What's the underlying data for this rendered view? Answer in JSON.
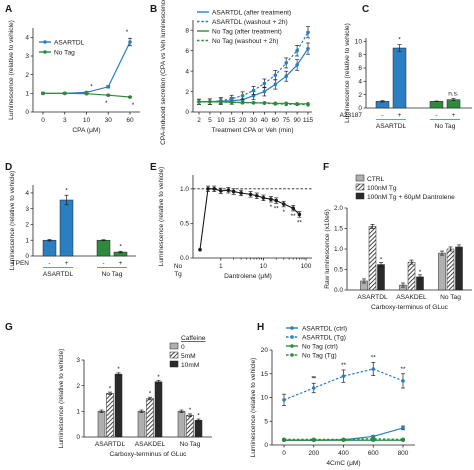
{
  "colors": {
    "blue": "#2a7fc1",
    "green": "#2e8b3e",
    "red": "#c0282c",
    "black": "#1a1a1a",
    "gray": "#a8a8a8",
    "dark": "#2a2a2a"
  },
  "chart_data": [
    {
      "panel": "A",
      "type": "line",
      "xlabel": "CPA (μM)",
      "ylabel": "Luminescence (relative to vehicle)",
      "x_ticks": [
        "0",
        "3",
        "10",
        "30",
        "60"
      ],
      "y_ticks": [
        "0",
        "1",
        "2",
        "3",
        "4"
      ],
      "ylim": [
        0,
        4.5
      ],
      "legend_position": "top-left",
      "series": [
        {
          "name": "ASARTDL",
          "color": "#2a7fc1",
          "values": [
            1.0,
            1.0,
            1.05,
            1.35,
            3.75
          ],
          "err": [
            0.03,
            0.03,
            0.04,
            0.06,
            0.2
          ]
        },
        {
          "name": "No Tag",
          "color": "#2e8b3e",
          "values": [
            1.0,
            1.0,
            0.98,
            0.9,
            0.8
          ],
          "err": [
            0.03,
            0.03,
            0.03,
            0.03,
            0.03
          ]
        }
      ],
      "annotations": [
        "*",
        "*",
        "*",
        "*"
      ]
    },
    {
      "panel": "B",
      "type": "line",
      "xlabel": "Treatment CPA or Veh (min)",
      "ylabel": "CPA-induced secretion (CPA vs Veh luminescence)",
      "x_ticks": [
        "2",
        "5",
        "10",
        "15",
        "20",
        "30",
        "40",
        "60",
        "75",
        "90",
        "115"
      ],
      "y_ticks": [
        "0",
        "2",
        "4",
        "6",
        "8"
      ],
      "ylim": [
        0,
        9
      ],
      "legend_position": "top-left",
      "series": [
        {
          "name": "ASARTDL (after treatment)",
          "color": "#2a7fc1",
          "dash": "solid",
          "values": [
            1.0,
            1.0,
            1.05,
            1.1,
            1.2,
            1.6,
            2.0,
            2.7,
            3.5,
            4.6,
            6.2
          ]
        },
        {
          "name": "ASARTDL (washout + 2h)",
          "color": "#2a7fc1",
          "dash": "dashed",
          "values": [
            1.0,
            1.0,
            1.1,
            1.3,
            1.6,
            2.1,
            2.8,
            3.6,
            4.8,
            6.0,
            7.8
          ]
        },
        {
          "name": "No Tag (after treatment)",
          "color": "#2e8b3e",
          "dash": "solid",
          "values": [
            1.0,
            1.0,
            1.0,
            0.95,
            0.95,
            0.9,
            0.9,
            0.85,
            0.85,
            0.8,
            0.8
          ]
        },
        {
          "name": "No Tag (washout + 2h)",
          "color": "#2e8b3e",
          "dash": "dashed",
          "values": [
            1.0,
            1.0,
            0.98,
            0.95,
            0.9,
            0.9,
            0.85,
            0.8,
            0.75,
            0.75,
            0.7
          ]
        }
      ]
    },
    {
      "panel": "C",
      "type": "bar",
      "ylabel": "Luminescence (relative to vehicle)",
      "tick_row_label": "A23187",
      "signs": [
        "-",
        "+",
        "-",
        "+"
      ],
      "groups": [
        "ASARTDL",
        "No Tag"
      ],
      "colors": [
        "#2a7fc1",
        "#2a7fc1",
        "#2e8b3e",
        "#2e8b3e"
      ],
      "values": [
        1.0,
        9.0,
        1.0,
        1.25
      ],
      "err": [
        0.1,
        0.5,
        0.05,
        0.15
      ],
      "y_ticks": [
        "0",
        "2",
        "4",
        "6",
        "8",
        "10"
      ],
      "ylim": [
        0,
        10.5
      ],
      "annotations": [
        "*",
        "n.s."
      ]
    },
    {
      "panel": "D",
      "type": "bar",
      "ylabel": "Luminescence (relative to vehicle)",
      "tick_row_label": "TPEN",
      "signs": [
        "-",
        "+",
        "-",
        "+"
      ],
      "groups": [
        "ASARTDL",
        "No Tag"
      ],
      "colors": [
        "#2a7fc1",
        "#2a7fc1",
        "#2e8b3e",
        "#2e8b3e"
      ],
      "values": [
        1.0,
        3.55,
        1.0,
        0.25
      ],
      "err": [
        0.05,
        0.3,
        0.03,
        0.05
      ],
      "y_ticks": [
        "0",
        "1",
        "2",
        "3",
        "4"
      ],
      "ylim": [
        0,
        4.5
      ],
      "annotations": [
        "*",
        "*"
      ]
    },
    {
      "panel": "E",
      "type": "line",
      "xlabel": "Dantrolene (μM)",
      "ylabel": "Luminescence (relative to vehicle)",
      "x_ticks": [
        "1",
        "10",
        "100"
      ],
      "extra_x_label": [
        "No",
        "Tg"
      ],
      "y_ticks": [
        "0.0",
        "0.5",
        "1.0"
      ],
      "ylim": [
        0,
        1.2
      ],
      "reference_line": 1.0,
      "x": [
        0.5,
        0.7,
        1,
        1.5,
        2,
        3,
        5,
        7,
        10,
        15,
        20,
        30,
        50,
        70
      ],
      "values": [
        1.0,
        1.0,
        0.97,
        0.98,
        0.96,
        0.94,
        0.92,
        0.9,
        0.87,
        0.85,
        0.83,
        0.78,
        0.72,
        0.63
      ],
      "no_tg_value": 0.12,
      "annotations": [
        "*",
        "**",
        "*",
        "**",
        "**"
      ]
    },
    {
      "panel": "F",
      "type": "bar",
      "xlabel": "Carboxy-terminus of GLuc",
      "ylabel": "Raw luminescence (x10e6)",
      "legend": [
        "CTRL",
        "100nM Tg",
        "100nM Tg + 60μM Dantrolene"
      ],
      "groups": [
        "ASARTDL",
        "ASAKDEL",
        "No Tag"
      ],
      "values": [
        [
          0.22,
          1.55,
          0.62
        ],
        [
          0.12,
          0.68,
          0.32
        ],
        [
          0.9,
          1.0,
          1.05
        ]
      ],
      "y_ticks": [
        "0.0",
        "0.5",
        "1.0",
        "1.5",
        "2.0"
      ],
      "ylim": [
        0,
        2.0
      ],
      "annotations": [
        "*",
        "*"
      ]
    },
    {
      "panel": "G",
      "type": "bar",
      "xlabel": "Carboxy-terminus of GLuc",
      "ylabel": "Luminescence (relative to vehicle)",
      "legend_title": "Caffeine",
      "legend": [
        "0",
        "5mM",
        "10mM"
      ],
      "groups": [
        "ASARTDL",
        "ASAKDEL",
        "No Tag"
      ],
      "values": [
        [
          1.0,
          1.7,
          2.45
        ],
        [
          1.0,
          1.5,
          2.15
        ],
        [
          1.0,
          0.85,
          0.65
        ]
      ],
      "y_ticks": [
        "0",
        "1",
        "2",
        "3"
      ],
      "ylim": [
        0,
        3.0
      ],
      "annotations": [
        "*",
        "*",
        "*",
        "*",
        "*",
        "*"
      ]
    },
    {
      "panel": "H",
      "type": "line",
      "xlabel": "4CmC (μM)",
      "ylabel": "Luminescence (relative to vehicle)",
      "x": [
        0,
        200,
        400,
        600,
        800
      ],
      "x_ticks": [
        "0",
        "200",
        "400",
        "600",
        "800"
      ],
      "y_ticks": [
        "0",
        "5",
        "10",
        "15",
        "20"
      ],
      "ylim": [
        0,
        20
      ],
      "legend_position": "top-left",
      "series": [
        {
          "name": "ASARTDL (ctrl)",
          "color": "#2a7fc1",
          "dash": "solid",
          "values": [
            1.0,
            1.0,
            1.1,
            1.8,
            3.6
          ],
          "err": [
            0.1,
            0.1,
            0.1,
            0.2,
            0.4
          ]
        },
        {
          "name": "ASARTDL (Tg)",
          "color": "#2a7fc1",
          "dash": "dashed",
          "values": [
            9.5,
            12.0,
            14.5,
            16.0,
            13.5
          ],
          "err": [
            1.2,
            1.0,
            1.3,
            1.4,
            1.5
          ]
        },
        {
          "name": "No Tag (ctrl)",
          "color": "#2e8b3e",
          "dash": "solid",
          "values": [
            1.0,
            1.0,
            1.0,
            1.0,
            1.0
          ],
          "err": [
            0.05,
            0.05,
            0.05,
            0.05,
            0.05
          ]
        },
        {
          "name": "No Tag (Tg)",
          "color": "#2e8b3e",
          "dash": "dashed",
          "values": [
            1.2,
            1.2,
            1.2,
            1.3,
            1.2
          ],
          "err": [
            0.05,
            0.05,
            0.05,
            0.05,
            0.05
          ]
        }
      ],
      "annotations": [
        "*",
        "**",
        "**",
        "**",
        "**"
      ]
    }
  ]
}
